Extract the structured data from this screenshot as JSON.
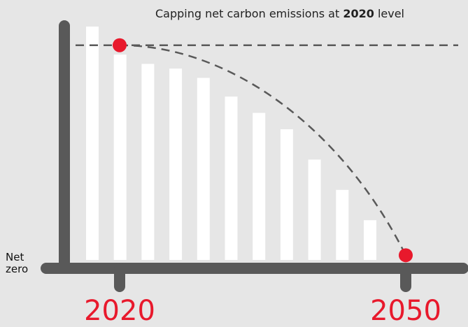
{
  "chart_data": {
    "type": "bar",
    "title_prefix": "Capping net carbon emissions at ",
    "title_highlight": "2020",
    "title_suffix": " level",
    "y_label_line1": "Net",
    "y_label_line2": "zero",
    "x_start_label": "2020",
    "x_end_label": "2050",
    "ylim": [
      0,
      100
    ],
    "values": [
      100,
      88,
      84,
      82,
      78,
      70,
      63,
      56,
      43,
      30,
      17
    ],
    "cap_value": 92,
    "cap_point_value": 92,
    "end_point_value": 2,
    "colors": {
      "background": "#e6e6e6",
      "axis": "#595959",
      "bar": "#ffffff",
      "marker": "#e8192c",
      "dashed": "#595959",
      "title": "#222222",
      "year_label": "#e8192c"
    }
  }
}
